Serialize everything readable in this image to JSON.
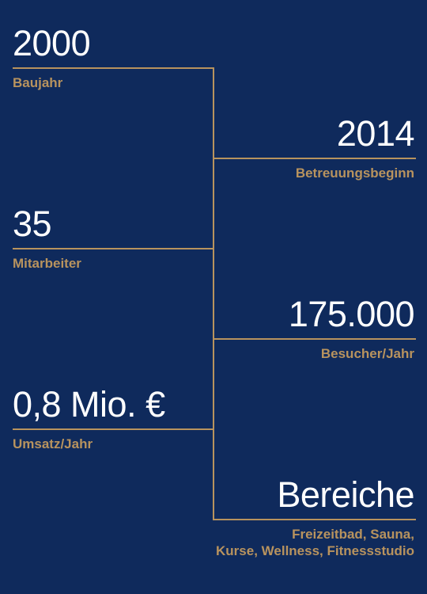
{
  "colors": {
    "background": "#0f2a5c",
    "accent": "#b8935e",
    "value_text": "#ffffff"
  },
  "facts": [
    {
      "value": "2000",
      "label": "Baujahr"
    },
    {
      "value": "2014",
      "label": "Betreuungsbeginn"
    },
    {
      "value": "35",
      "label": "Mitarbeiter"
    },
    {
      "value": "175.000",
      "label": "Besucher/Jahr"
    },
    {
      "value": "0,8 Mio. €",
      "label": "Umsatz/Jahr"
    },
    {
      "value": "Bereiche",
      "label_line1": "Freizeitbad, Sauna,",
      "label_line2": "Kurse, Wellness, Fitnessstudio"
    }
  ]
}
